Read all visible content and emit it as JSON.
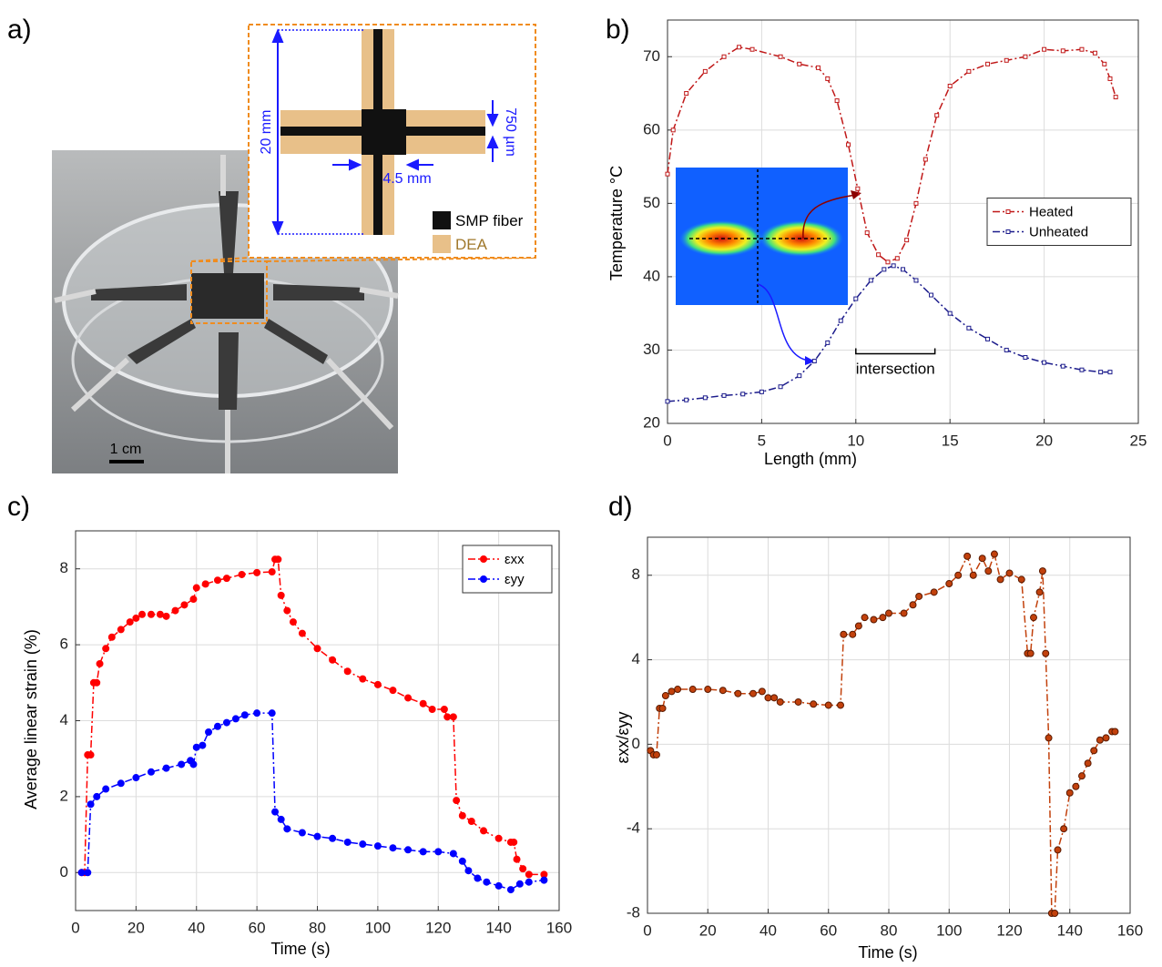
{
  "photo_panel": {
    "label": "a)",
    "dimension_labels": [
      "20 mm",
      "750 µm",
      "4.5 mm"
    ],
    "legend": [
      "SMP fiber",
      "DEA"
    ],
    "scale_bar": "1 cm"
  },
  "chart_data": [
    {
      "type": "line",
      "label": "b)",
      "xlabel": "Length (mm)",
      "ylabel": "Temperature °C",
      "xlim": [
        0,
        25
      ],
      "ylim": [
        20,
        75
      ],
      "xticks": [
        0,
        5,
        10,
        15,
        20,
        25
      ],
      "yticks": [
        20,
        30,
        40,
        50,
        60,
        70
      ],
      "grid": true,
      "legend": "middle right",
      "marker": "square",
      "line_style": "dash-dot",
      "annotations": [
        "intersection"
      ],
      "series": [
        {
          "name": "Heated",
          "color": "#c01818",
          "x": [
            0,
            0.3,
            1,
            2,
            3,
            3.8,
            4.5,
            6,
            7,
            8,
            8.5,
            9,
            9.6,
            10.1,
            10.6,
            11.2,
            11.7,
            12.2,
            12.7,
            13.2,
            13.7,
            14.3,
            15,
            16,
            17,
            18,
            19,
            20,
            21,
            22,
            22.7,
            23.2,
            23.5,
            23.8
          ],
          "values": [
            54,
            60,
            65,
            68,
            70,
            71.3,
            71,
            70,
            69,
            68.5,
            67,
            64,
            58,
            52,
            46,
            43,
            42,
            42.5,
            45,
            50,
            56,
            62,
            66,
            68,
            69,
            69.5,
            70,
            71,
            70.8,
            71,
            70.5,
            69,
            67,
            64.5
          ]
        },
        {
          "name": "Unheated",
          "color": "#1c1c8c",
          "x": [
            0,
            1,
            2,
            3,
            4,
            5,
            6,
            7,
            7.8,
            8.5,
            9.2,
            10,
            10.8,
            11.5,
            12,
            12.5,
            13.2,
            14,
            15,
            16,
            17,
            18,
            19,
            20,
            21,
            22,
            23,
            23.5
          ],
          "values": [
            23,
            23.2,
            23.5,
            23.8,
            24,
            24.3,
            25,
            26.5,
            28.5,
            31,
            34,
            37,
            39.5,
            41,
            41.5,
            41,
            39.5,
            37.5,
            35,
            33,
            31.5,
            30,
            29,
            28.3,
            27.8,
            27.3,
            27,
            27
          ]
        }
      ]
    },
    {
      "type": "line",
      "label": "c)",
      "xlabel": "Time (s)",
      "ylabel": "Average linear strain (%)",
      "xlim": [
        0,
        160
      ],
      "ylim": [
        -1,
        9
      ],
      "xticks": [
        0,
        20,
        40,
        60,
        80,
        100,
        120,
        140,
        160
      ],
      "yticks": [
        0,
        2,
        4,
        6,
        8
      ],
      "grid": true,
      "legend": "upper right",
      "marker": "circle",
      "line_style": "dash-dot",
      "series": [
        {
          "name": "εxx",
          "color": "#ff0000",
          "x": [
            2,
            3,
            4,
            5,
            6,
            7,
            8,
            10,
            12,
            15,
            18,
            20,
            22,
            25,
            28,
            30,
            33,
            36,
            39,
            40,
            43,
            47,
            50,
            55,
            60,
            65,
            66,
            67,
            68,
            70,
            72,
            75,
            80,
            85,
            90,
            95,
            100,
            105,
            110,
            115,
            118,
            122,
            123,
            125,
            126,
            128,
            131,
            135,
            140,
            144,
            145,
            146,
            148,
            150,
            155
          ],
          "values": [
            0,
            0,
            3.1,
            3.1,
            5,
            5,
            5.5,
            5.9,
            6.2,
            6.4,
            6.6,
            6.7,
            6.8,
            6.8,
            6.8,
            6.75,
            6.9,
            7.05,
            7.2,
            7.5,
            7.6,
            7.7,
            7.75,
            7.85,
            7.9,
            7.92,
            8.25,
            8.25,
            7.3,
            6.9,
            6.6,
            6.3,
            5.9,
            5.6,
            5.3,
            5.1,
            4.95,
            4.8,
            4.6,
            4.45,
            4.3,
            4.3,
            4.1,
            4.1,
            1.9,
            1.5,
            1.35,
            1.1,
            0.9,
            0.8,
            0.8,
            0.35,
            0.1,
            -0.05,
            -0.05
          ]
        },
        {
          "name": "εyy",
          "color": "#0000ff",
          "x": [
            2,
            4,
            5,
            7,
            10,
            15,
            20,
            25,
            30,
            35,
            38,
            39,
            40,
            42,
            44,
            47,
            50,
            53,
            56,
            60,
            65,
            66,
            68,
            70,
            75,
            80,
            85,
            90,
            95,
            100,
            105,
            110,
            115,
            120,
            125,
            128,
            130,
            133,
            136,
            140,
            144,
            147,
            150,
            155
          ],
          "values": [
            0,
            0,
            1.8,
            2,
            2.2,
            2.35,
            2.5,
            2.65,
            2.75,
            2.85,
            2.95,
            2.85,
            3.3,
            3.35,
            3.7,
            3.85,
            3.95,
            4.05,
            4.15,
            4.2,
            4.2,
            1.6,
            1.4,
            1.15,
            1.05,
            0.95,
            0.9,
            0.8,
            0.75,
            0.7,
            0.65,
            0.6,
            0.55,
            0.55,
            0.5,
            0.3,
            0.05,
            -0.15,
            -0.25,
            -0.35,
            -0.45,
            -0.3,
            -0.25,
            -0.2
          ]
        }
      ]
    },
    {
      "type": "line",
      "label": "d)",
      "xlabel": "Time (s)",
      "ylabel": "εxx/εyy",
      "xlim": [
        0,
        160
      ],
      "ylim": [
        -8,
        9.8
      ],
      "xticks": [
        0,
        20,
        40,
        60,
        80,
        100,
        120,
        140,
        160
      ],
      "yticks": [
        -8,
        -4,
        0,
        4,
        8
      ],
      "grid": true,
      "marker": "circle",
      "line_style": "dash-dot",
      "series": [
        {
          "color": "#c2410c",
          "x": [
            1,
            2,
            3,
            4,
            5,
            6,
            8,
            10,
            15,
            20,
            25,
            30,
            35,
            38,
            40,
            42,
            44,
            50,
            55,
            60,
            64,
            65,
            68,
            70,
            72,
            75,
            78,
            80,
            85,
            88,
            90,
            95,
            100,
            103,
            106,
            108,
            111,
            113,
            115,
            117,
            120,
            124,
            126,
            127,
            128,
            130,
            131,
            132,
            133,
            134,
            135,
            136,
            138,
            140,
            142,
            144,
            146,
            148,
            150,
            152,
            154,
            155
          ],
          "values": [
            -0.3,
            -0.5,
            -0.5,
            1.7,
            1.7,
            2.3,
            2.5,
            2.6,
            2.6,
            2.6,
            2.55,
            2.4,
            2.4,
            2.5,
            2.2,
            2.2,
            2,
            2,
            1.9,
            1.85,
            1.85,
            5.2,
            5.2,
            5.6,
            6,
            5.9,
            6,
            6.2,
            6.2,
            6.6,
            7,
            7.2,
            7.6,
            8,
            8.9,
            8,
            8.8,
            8.2,
            9,
            7.8,
            8.1,
            7.8,
            4.3,
            4.3,
            6,
            7.2,
            8.2,
            4.3,
            0.3,
            -8,
            -8,
            -5,
            -4,
            -2.3,
            -2,
            -1.5,
            -0.9,
            -0.3,
            0.2,
            0.3,
            0.6,
            0.6
          ]
        }
      ]
    }
  ]
}
